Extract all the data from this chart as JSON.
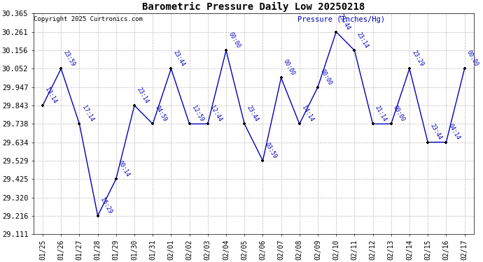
{
  "title": "Barometric Pressure Daily Low 20250218",
  "ylabel": "Pressure (Inches/Hg)",
  "copyright": "Copyright 2025 Curtronics.com",
  "background_color": "#ffffff",
  "line_color": "#0000bb",
  "point_color": "#000000",
  "label_color": "#0000bb",
  "ylim": [
    29.111,
    30.365
  ],
  "yticks": [
    29.111,
    29.216,
    29.32,
    29.425,
    29.529,
    29.634,
    29.738,
    29.843,
    29.947,
    30.052,
    30.156,
    30.261,
    30.365
  ],
  "dates": [
    "01/25",
    "01/26",
    "01/27",
    "01/28",
    "01/29",
    "01/30",
    "01/31",
    "02/01",
    "02/02",
    "02/03",
    "02/04",
    "02/05",
    "02/06",
    "02/07",
    "02/08",
    "02/09",
    "02/10",
    "02/11",
    "02/12",
    "02/13",
    "02/14",
    "02/15",
    "02/16",
    "02/17"
  ],
  "values": [
    29.843,
    30.052,
    29.738,
    29.216,
    29.425,
    29.843,
    29.738,
    30.052,
    29.738,
    29.738,
    30.156,
    29.738,
    29.529,
    30.0,
    29.738,
    29.947,
    30.261,
    30.156,
    29.738,
    29.738,
    30.052,
    29.634,
    29.634,
    30.052
  ],
  "time_labels": [
    "13:14",
    "23:59",
    "17:14",
    "15:29",
    "00:14",
    "23:14",
    "04:59",
    "23:44",
    "12:59",
    "12:44",
    "00:00",
    "23:44",
    "03:59",
    "00:00",
    "14:14",
    "00:00",
    "23:44",
    "23:14",
    "21:14",
    "00:00",
    "23:29",
    "23:44",
    "04:14",
    "00:00"
  ]
}
